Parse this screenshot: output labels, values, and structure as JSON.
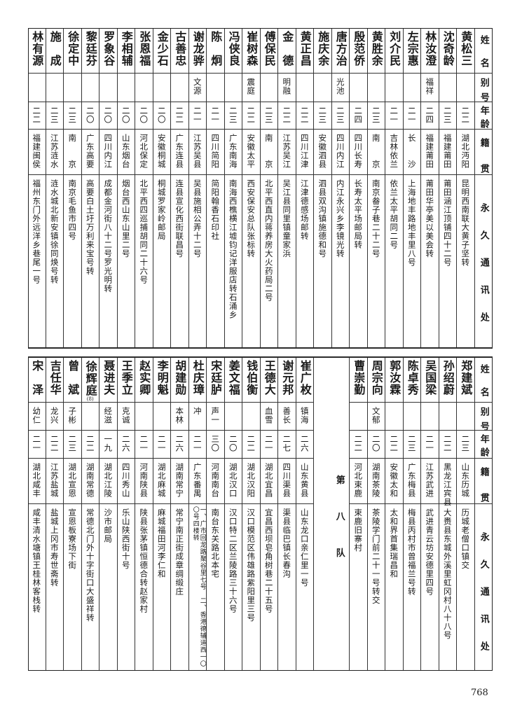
{
  "headers": [
    "姓名",
    "别号",
    "年龄",
    "籍贯",
    "永久通讯处"
  ],
  "top_table": [
    {
      "name": "黄松三",
      "alias": "",
      "age": "二二",
      "native": "湖北沔阳",
      "address": "昆明西南联大黄子坚转"
    },
    {
      "name": "沈奇龄",
      "alias": "",
      "age": "二三",
      "native": "福建莆田",
      "address": "莆田涵江顶铺四十二号"
    },
    {
      "name": "林汝澄",
      "alias": "福祥",
      "age": "二四",
      "native": "福建莆田",
      "address": "莆田华亭美以美会转"
    },
    {
      "name": "左宗惠",
      "alias": "",
      "age": "二一",
      "native": "长沙",
      "address": "上海地丰路地丰里八号"
    },
    {
      "name": "刘介民",
      "alias": "",
      "age": "二一",
      "native": "吉林依兰",
      "address": "依兰太平胡同二号"
    },
    {
      "name": "黄胜余",
      "alias": "",
      "age": "二三",
      "native": "南京",
      "address": "南京畚子巷二十二号"
    },
    {
      "name": "殷范侨",
      "alias": "",
      "age": "二四",
      "native": "四川长寿",
      "address": "长寿太平场邮局转"
    },
    {
      "name": "唐方治",
      "alias": "光池",
      "age": "二三",
      "native": "四川内江",
      "address": "内江永兴乡李镜光转"
    },
    {
      "name": "施庆余",
      "alias": "",
      "age": "二三",
      "native": "安徽泗县",
      "address": "泗县双沟镇施德和号"
    },
    {
      "name": "黄正昌",
      "alias": "",
      "age": "二二",
      "native": "四川江津",
      "address": "江津德感场邮转"
    },
    {
      "name": "金德",
      "alias": "明融",
      "age": "二二",
      "native": "江苏吴江",
      "address": "吴江县同里镇童家浜"
    },
    {
      "name": "傅保民",
      "alias": "",
      "age": "二三",
      "native": "南京",
      "address": "北平西直内蒋养房大火药局二号"
    },
    {
      "name": "崔树森",
      "alias": "震庭",
      "age": "二二",
      "native": "安徽太平",
      "address": "西安保安总队张标转"
    },
    {
      "name": "冯侠良",
      "alias": "",
      "age": "二三",
      "native": "广东南海",
      "address": "南海西樵横江墟钧记洋服店转石涌乡"
    },
    {
      "name": "陈炯",
      "alias": "",
      "age": "二一",
      "native": "四川简阳",
      "address": "简阳翰香石印社"
    },
    {
      "name": "谢龙骅",
      "alias": "文源",
      "age": "二一",
      "native": "江苏吴县",
      "address": "吴县施相公弄十二号"
    },
    {
      "name": "古善忠",
      "alias": "",
      "age": "二二",
      "native": "广东连县",
      "address": "连县宣化西街联昌号"
    },
    {
      "name": "金少石",
      "alias": "",
      "age": "二〇",
      "native": "安徽桐城",
      "address": "桐城罗家岭邮局"
    },
    {
      "name": "张恩福",
      "alias": "",
      "age": "二〇",
      "native": "河北保定",
      "address": "北平西四巡捕胡同二十六号"
    },
    {
      "name": "李相辅",
      "alias": "",
      "age": "二〇",
      "native": "山东烟台",
      "address": "烟台西山东山里二号"
    },
    {
      "name": "罗象谷",
      "alias": "",
      "age": "二〇",
      "native": "四川内江",
      "address": "成都金河街八十二号罗光明转"
    },
    {
      "name": "黎廷芬",
      "alias": "",
      "age": "二〇",
      "native": "广东高要",
      "address": "高要白土圩万利来宝号转"
    },
    {
      "name": "徐定中",
      "alias": "",
      "age": "二三",
      "native": "南京",
      "address": "南京毛鱼市四号"
    },
    {
      "name": "施成",
      "alias": "",
      "age": "二三",
      "native": "江苏涟水",
      "address": "涟水城北新安镇徐同焕号转"
    },
    {
      "name": "林有源",
      "alias": "",
      "age": "二二",
      "native": "福建闽侯",
      "address": "福州东门外远洋乡巷尾一号"
    }
  ],
  "bottom_right_table": [
    {
      "name": "郑建斌",
      "alias": "",
      "age": "二三",
      "native": "山东历城",
      "address": "历城老僧口镇交"
    },
    {
      "name": "孙绍蔚",
      "alias": "",
      "age": "二二",
      "native": "黑龙江宾县",
      "address": "大赉县东城外溪里虹冈村八十八号"
    },
    {
      "name": "吴国梁",
      "alias": "",
      "age": "二一",
      "native": "江苏武进",
      "address": "武进青云坊安德里四号"
    },
    {
      "name": "陈卓秀",
      "alias": "",
      "age": "二三",
      "native": "广东梅县",
      "address": "梅县丙村市曾福兰号转"
    },
    {
      "name": "郭汝霖",
      "alias": "",
      "age": "二二",
      "native": "安徽太和",
      "address": "太和界首集瑞昌和"
    },
    {
      "name": "周宗向",
      "alias": "文郁",
      "age": "二〇",
      "native": "湖南茶陵",
      "address": "茶陵学门前二十一号转交"
    },
    {
      "name": "曹崇勤",
      "alias": "",
      "age": "二二",
      "native": "河北束鹿",
      "address": "束鹿旧寨村"
    }
  ],
  "team_label": [
    "第",
    "八",
    "队"
  ],
  "bottom_left_table": [
    {
      "name": "崔广枚",
      "alias": "镇海",
      "age": "二六",
      "native": "山东黄县",
      "address": "山东龙口亲仁里一号"
    },
    {
      "name": "谢元邦",
      "alias": "善长",
      "age": "二七",
      "native": "四川渠县",
      "address": "渠县临巴镇长春沟"
    },
    {
      "name": "王德大",
      "alias": "血雪",
      "age": "二一",
      "native": "湖北宜昌",
      "address": "宜昌西坝皂角树巷二十五号"
    },
    {
      "name": "钱伯衡",
      "alias": "",
      "age": "二二",
      "native": "湖北汉阳",
      "address": "汉口模范区伟雄路紫阳里三号"
    },
    {
      "name": "姜文福",
      "alias": "",
      "age": "二〇",
      "native": "湖北汉口",
      "address": "汉口特二区兰陵路三十六号"
    },
    {
      "name": "宋廷胪",
      "alias": "声一",
      "age": "三〇",
      "native": "河南南台",
      "address": "南台东关路北本宅"
    },
    {
      "name": "杜庆璋",
      "alias": "冲",
      "age": "二一",
      "native": "广东番禺",
      "address": "一、广市回龙路聚谷里七号　二、香港德辅道西一〇〇号四楼转"
    },
    {
      "name": "胡建勋",
      "alias": "本林",
      "age": "二六",
      "native": "湖南常宁",
      "address": "常宁南正街成章绸缎庄"
    },
    {
      "name": "李明魁",
      "alias": "",
      "age": "二一",
      "native": "湖北麻城",
      "address": "麻城福田河李仁和"
    },
    {
      "name": "赵实卿",
      "alias": "",
      "age": "二一",
      "native": "河南陕县",
      "address": "陕县张茅镇恒德合转赵家村"
    },
    {
      "name": "王季立",
      "alias": "克诚",
      "age": "二六",
      "native": "四川秀山",
      "address": "乐山陕西街十号"
    },
    {
      "name": "聂进夫",
      "alias": "经滋",
      "age": "一九",
      "native": "湖北江陵",
      "address": "沙市邮局"
    },
    {
      "name": "徐辉庭",
      "name_note": "(8)",
      "alias": "",
      "age": "二二",
      "native": "湖南常德",
      "address": "常德北门外十字街口大盛祥转"
    },
    {
      "name": "曾斌",
      "alias": "子彬",
      "age": "二三",
      "native": "湖北宣恩",
      "address": "宣恩板寮场下街"
    },
    {
      "name": "吉任华",
      "alias": "龙兴",
      "age": "二二",
      "native": "江苏盐城",
      "address": "盐城上冈市寿世斋转"
    },
    {
      "name": "宋泽",
      "alias": "幼仁",
      "age": "二一",
      "native": "湖北咸丰",
      "address": "咸丰清水塘镇王桂林客栈转"
    }
  ],
  "page_number": "768"
}
